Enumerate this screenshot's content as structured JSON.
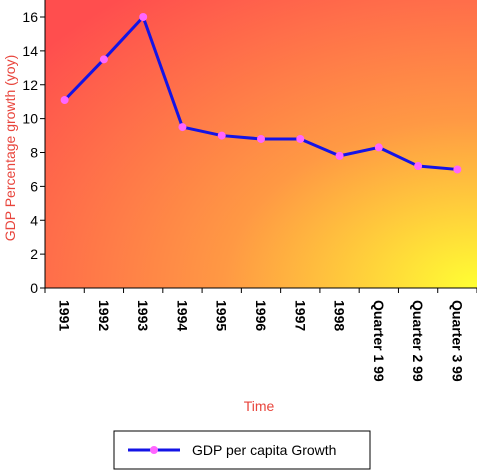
{
  "chart_data": {
    "type": "line",
    "title": "",
    "xlabel": "Time",
    "ylabel": "GDP Percentage growth (yoy)",
    "categories": [
      "1991",
      "1992",
      "1993",
      "1994",
      "1995",
      "1996",
      "1997",
      "1998",
      "Quarter 1 99",
      "Quarter 2 99",
      "Quarter 3 99"
    ],
    "series": [
      {
        "name": "GDP per capita Growth",
        "values": [
          11.1,
          13.5,
          16.0,
          9.5,
          9.0,
          8.8,
          8.8,
          7.8,
          8.3,
          7.2,
          7.0
        ]
      }
    ],
    "ylim": [
      0,
      16
    ],
    "yticks": [
      0,
      2,
      4,
      6,
      8,
      10,
      12,
      14,
      16
    ],
    "legend": "bottom",
    "colors": {
      "line": "#1414e6",
      "marker": "#ff66ff",
      "background_gradient": [
        "#ff4e4e",
        "#ff9944",
        "#ffff33"
      ],
      "axis_title": "#e8453c"
    }
  }
}
